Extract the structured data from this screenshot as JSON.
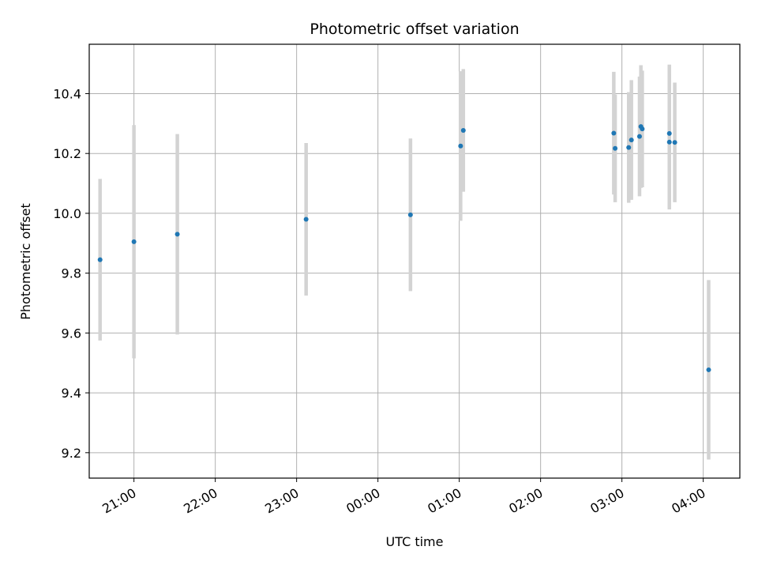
{
  "chart_data": {
    "type": "scatter",
    "title": "Photometric offset variation",
    "xlabel": "UTC time",
    "ylabel": "Photometric offset",
    "x_ticks": [
      "21:00",
      "22:00",
      "23:00",
      "00:00",
      "01:00",
      "02:00",
      "03:00",
      "04:00"
    ],
    "y_ticks": [
      "9.2",
      "9.4",
      "9.6",
      "9.8",
      "10.0",
      "10.2",
      "10.4"
    ],
    "grid": true,
    "point_color": "#1f77b4",
    "errorbar_color": "#d3d3d3",
    "points": [
      {
        "time": "20:35",
        "y": 9.845,
        "err": 0.27
      },
      {
        "time": "21:00",
        "y": 9.905,
        "err": 0.39
      },
      {
        "time": "21:32",
        "y": 9.93,
        "err": 0.335
      },
      {
        "time": "23:07",
        "y": 9.98,
        "err": 0.255
      },
      {
        "time": "00:24",
        "y": 9.995,
        "err": 0.255
      },
      {
        "time": "01:01",
        "y": 10.225,
        "err": 0.25
      },
      {
        "time": "01:03",
        "y": 10.277,
        "err": 0.205
      },
      {
        "time": "02:54",
        "y": 10.268,
        "err": 0.205
      },
      {
        "time": "02:55",
        "y": 10.217,
        "err": 0.18
      },
      {
        "time": "03:05",
        "y": 10.22,
        "err": 0.185
      },
      {
        "time": "03:07",
        "y": 10.245,
        "err": 0.2
      },
      {
        "time": "03:13",
        "y": 10.257,
        "err": 0.2
      },
      {
        "time": "03:14",
        "y": 10.29,
        "err": 0.205
      },
      {
        "time": "03:15",
        "y": 10.282,
        "err": 0.195
      },
      {
        "time": "03:35",
        "y": 10.267,
        "err": 0.23
      },
      {
        "time": "03:35",
        "y": 10.238,
        "err": 0.225
      },
      {
        "time": "03:39",
        "y": 10.237,
        "err": 0.2
      },
      {
        "time": "04:04",
        "y": 9.477,
        "err": 0.3
      }
    ],
    "x_range": [
      "20:27",
      "04:27"
    ],
    "ylim": [
      9.115,
      10.565
    ]
  }
}
